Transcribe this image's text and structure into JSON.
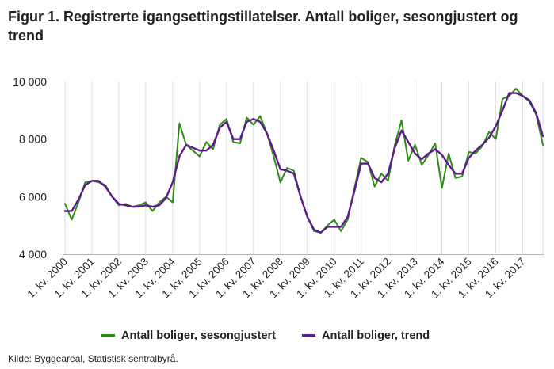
{
  "title": "Figur 1. Registrerte igangsettingstillatelser. Antall boliger, sesongjustert og trend",
  "source": "Kilde: Byggeareal, Statistisk sentralbyrå.",
  "chart_data": {
    "type": "line",
    "title": "Figur 1. Registrerte igangsettingstillatelser. Antall boliger, sesongjustert og trend",
    "xlabel": "",
    "ylabel": "",
    "ylim": [
      4000,
      10000
    ],
    "yticks": [
      4000,
      6000,
      8000,
      10000
    ],
    "ytick_labels": [
      "4 000",
      "6 000",
      "8 000",
      "10 000"
    ],
    "xtick_labels": [
      "1. kv. 2000",
      "1. kv. 2001",
      "1. kv. 2002",
      "1. kv. 2003",
      "1. kv. 2004",
      "1. kv. 2005",
      "1. kv. 2006",
      "1. kv. 2007",
      "1. kv. 2008",
      "1. kv. 2009",
      "1. kv. 2010",
      "1. kv. 2011",
      "1. kv. 2012",
      "1. kv. 2013",
      "1. kv. 2014",
      "1. kv. 2015",
      "1. kv. 2016",
      "1. kv. 2017"
    ],
    "grid": "vertical",
    "legend_position": "bottom",
    "x": [
      "2000K1",
      "2000K2",
      "2000K3",
      "2000K4",
      "2001K1",
      "2001K2",
      "2001K3",
      "2001K4",
      "2002K1",
      "2002K2",
      "2002K3",
      "2002K4",
      "2003K1",
      "2003K2",
      "2003K3",
      "2003K4",
      "2004K1",
      "2004K2",
      "2004K3",
      "2004K4",
      "2005K1",
      "2005K2",
      "2005K3",
      "2005K4",
      "2006K1",
      "2006K2",
      "2006K3",
      "2006K4",
      "2007K1",
      "2007K2",
      "2007K3",
      "2007K4",
      "2008K1",
      "2008K2",
      "2008K3",
      "2008K4",
      "2009K1",
      "2009K2",
      "2009K3",
      "2009K4",
      "2010K1",
      "2010K2",
      "2010K3",
      "2010K4",
      "2011K1",
      "2011K2",
      "2011K3",
      "2011K4",
      "2012K1",
      "2012K2",
      "2012K3",
      "2012K4",
      "2013K1",
      "2013K2",
      "2013K3",
      "2013K4",
      "2014K1",
      "2014K2",
      "2014K3",
      "2014K4",
      "2015K1",
      "2015K2",
      "2015K3",
      "2015K4",
      "2016K1",
      "2016K2",
      "2016K3",
      "2016K4",
      "2017K1",
      "2017K2",
      "2017K3",
      "2017K4"
    ],
    "series": [
      {
        "name": "Antall boliger, sesongjustert",
        "color": "#2e8b14",
        "values": [
          5750,
          5200,
          5800,
          6500,
          6550,
          6500,
          6400,
          6000,
          5700,
          5750,
          5650,
          5700,
          5800,
          5500,
          5800,
          6000,
          5800,
          8550,
          7800,
          7600,
          7400,
          7900,
          7650,
          8500,
          8700,
          7900,
          7850,
          8750,
          8500,
          8800,
          8200,
          7400,
          6500,
          7000,
          6900,
          6000,
          5300,
          4800,
          4750,
          5000,
          5200,
          4800,
          5200,
          6300,
          7350,
          7200,
          6350,
          6800,
          6550,
          7800,
          8650,
          7250,
          7800,
          7100,
          7450,
          7850,
          6300,
          7500,
          6650,
          6700,
          7550,
          7500,
          7750,
          8250,
          8000,
          9400,
          9500,
          9750,
          9500,
          9300,
          8850,
          7800
        ]
      },
      {
        "name": "Antall boliger, trend",
        "color": "#5e1a8c",
        "values": [
          5500,
          5500,
          5900,
          6400,
          6550,
          6550,
          6350,
          6000,
          5750,
          5700,
          5650,
          5650,
          5700,
          5650,
          5700,
          5950,
          6500,
          7400,
          7800,
          7700,
          7600,
          7600,
          7800,
          8400,
          8600,
          8000,
          8000,
          8600,
          8700,
          8600,
          8200,
          7600,
          6950,
          6900,
          6800,
          6000,
          5300,
          4850,
          4750,
          4950,
          4950,
          4950,
          5300,
          6200,
          7150,
          7150,
          6650,
          6500,
          6800,
          7700,
          8300,
          7900,
          7500,
          7300,
          7500,
          7650,
          7450,
          7100,
          6800,
          6800,
          7350,
          7600,
          7800,
          8050,
          8450,
          9000,
          9600,
          9600,
          9500,
          9350,
          8900,
          8100
        ]
      }
    ]
  }
}
